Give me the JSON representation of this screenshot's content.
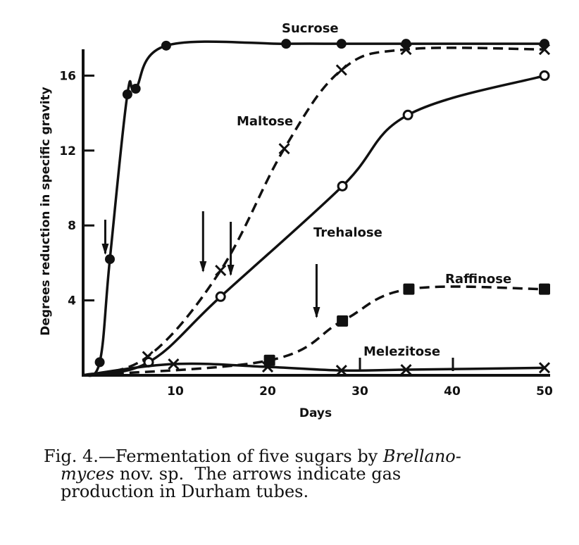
{
  "chart_data": {
    "type": "line",
    "title": "",
    "xlabel": "Days",
    "ylabel": "Degrees reduction in specific gravity",
    "xlim": [
      0,
      50
    ],
    "ylim": [
      0,
      18
    ],
    "xticks": [
      10,
      20,
      30,
      40,
      50
    ],
    "yticks": [
      4,
      8,
      12,
      16
    ],
    "grid": false,
    "series": [
      {
        "name": "Sucrose",
        "line": "solid",
        "marker": "filled-circle",
        "x": [
          0,
          1.8,
          2.9,
          4.8,
          5.7,
          9,
          22,
          28,
          35,
          50
        ],
        "y": [
          0,
          0.7,
          6.2,
          15.0,
          15.3,
          17.6,
          17.7,
          17.7,
          17.7,
          17.7
        ]
      },
      {
        "name": "Maltose",
        "line": "dashed",
        "marker": "x",
        "x": [
          0,
          7,
          14.9,
          21.8,
          28,
          35,
          50
        ],
        "y": [
          0,
          1.0,
          5.6,
          12.1,
          16.3,
          17.4,
          17.4
        ]
      },
      {
        "name": "Trehalose",
        "line": "solid",
        "marker": "open-circle",
        "x": [
          0,
          7.1,
          14.9,
          28.1,
          35.2,
          50
        ],
        "y": [
          0,
          0.7,
          4.2,
          10.1,
          13.9,
          16.0
        ]
      },
      {
        "name": "Raffinose",
        "line": "dashed",
        "marker": "filled-square",
        "x": [
          0,
          20.2,
          28.1,
          35.3,
          50
        ],
        "y": [
          0,
          0.8,
          2.9,
          4.6,
          4.6
        ]
      },
      {
        "name": "Melezitose",
        "line": "solid",
        "marker": "x",
        "x": [
          0,
          9.8,
          20,
          28,
          35,
          50
        ],
        "y": [
          0,
          0.6,
          0.45,
          0.26,
          0.3,
          0.4
        ]
      }
    ],
    "annotations": {
      "gas_arrows_days": [
        2.4,
        13,
        16,
        25.3
      ]
    }
  },
  "caption": {
    "line1_prefix": "Fig. 4.—Fermentation of five sugars by ",
    "line1_italic": "Brellano-",
    "line2_italic": "myces",
    "line2_rest": " nov. sp.  The arrows indicate gas",
    "line3": "production in Durham tubes."
  }
}
